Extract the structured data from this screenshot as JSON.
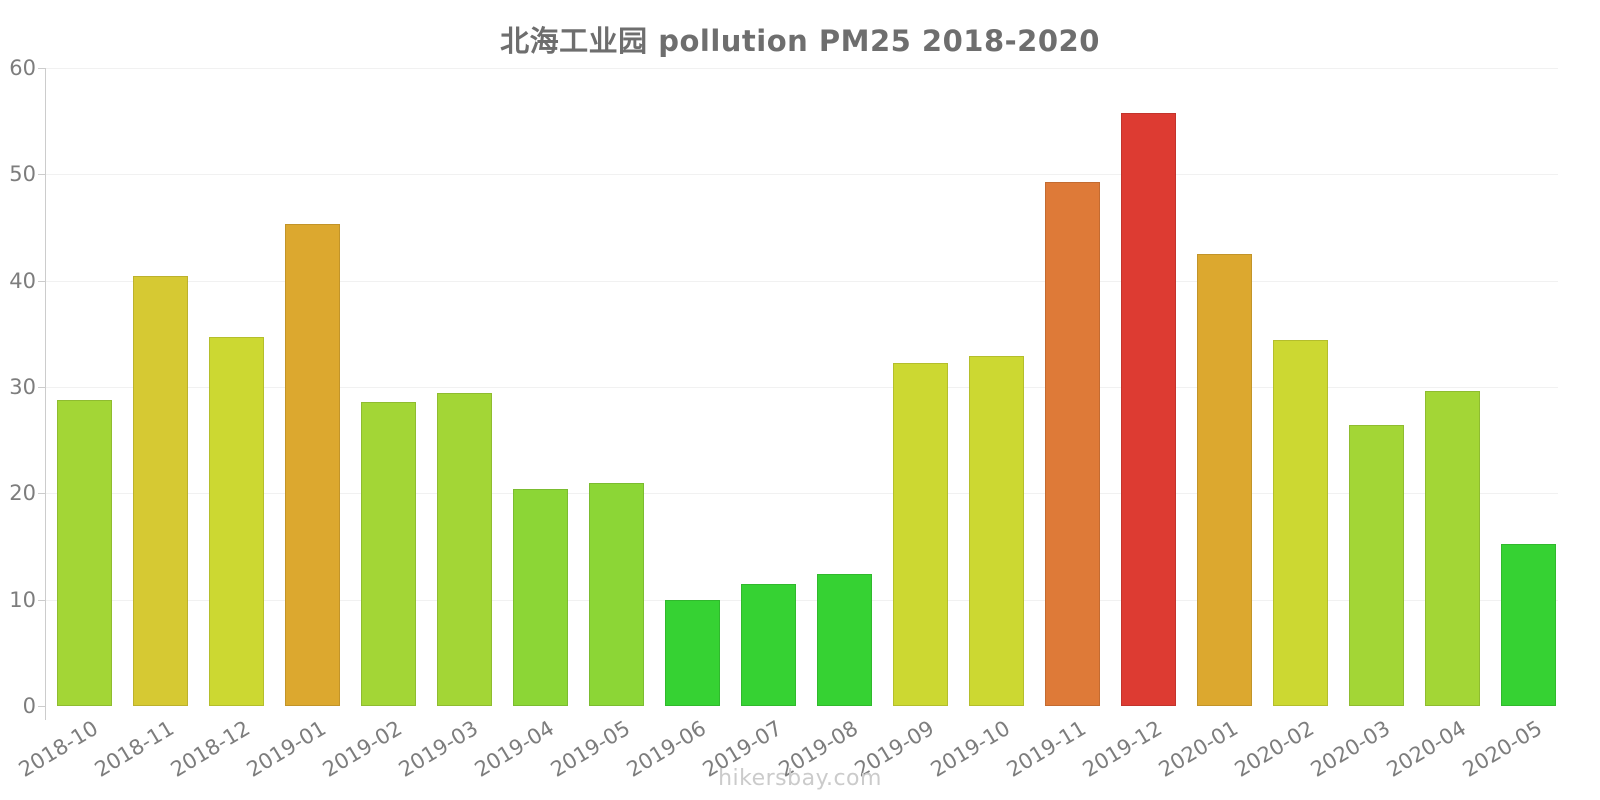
{
  "title": "北海工业园 pollution PM25 2018-2020",
  "footer": "hikersbay.com",
  "chart_data": {
    "type": "bar",
    "title": "北海工业园 pollution PM25 2018-2020",
    "xlabel": "",
    "ylabel": "",
    "ylim": [
      0,
      60
    ],
    "yticks": [
      0,
      10,
      20,
      30,
      40,
      50,
      60
    ],
    "grid": true,
    "legend": "none",
    "categories": [
      "2018-10",
      "2018-11",
      "2018-12",
      "2019-01",
      "2019-02",
      "2019-03",
      "2019-04",
      "2019-05",
      "2019-06",
      "2019-07",
      "2019-08",
      "2019-09",
      "2019-10",
      "2019-11",
      "2019-12",
      "2020-01",
      "2020-02",
      "2020-03",
      "2020-04",
      "2020-05"
    ],
    "values": [
      28.8,
      40.4,
      34.7,
      45.3,
      28.6,
      29.4,
      20.4,
      21.0,
      10.0,
      11.5,
      12.4,
      32.3,
      32.9,
      49.3,
      55.8,
      42.5,
      34.4,
      26.4,
      29.6,
      15.2
    ],
    "bar_colors": [
      "#a3d636",
      "#d6c933",
      "#ccd832",
      "#dca82f",
      "#a3d636",
      "#a3d636",
      "#8cd636",
      "#8cd636",
      "#36d233",
      "#36d233",
      "#36d233",
      "#ccd832",
      "#ccd832",
      "#de7a38",
      "#dd3b32",
      "#dca82f",
      "#ccd832",
      "#a3d636",
      "#a3d636",
      "#36d233"
    ]
  },
  "style_colors": {
    "axis": "#cccccc",
    "grid": "#f1f1f1",
    "title_text": "#6e6e6e",
    "tick_text": "#7d7d7d",
    "watermark_text": "#cbcbcb"
  }
}
